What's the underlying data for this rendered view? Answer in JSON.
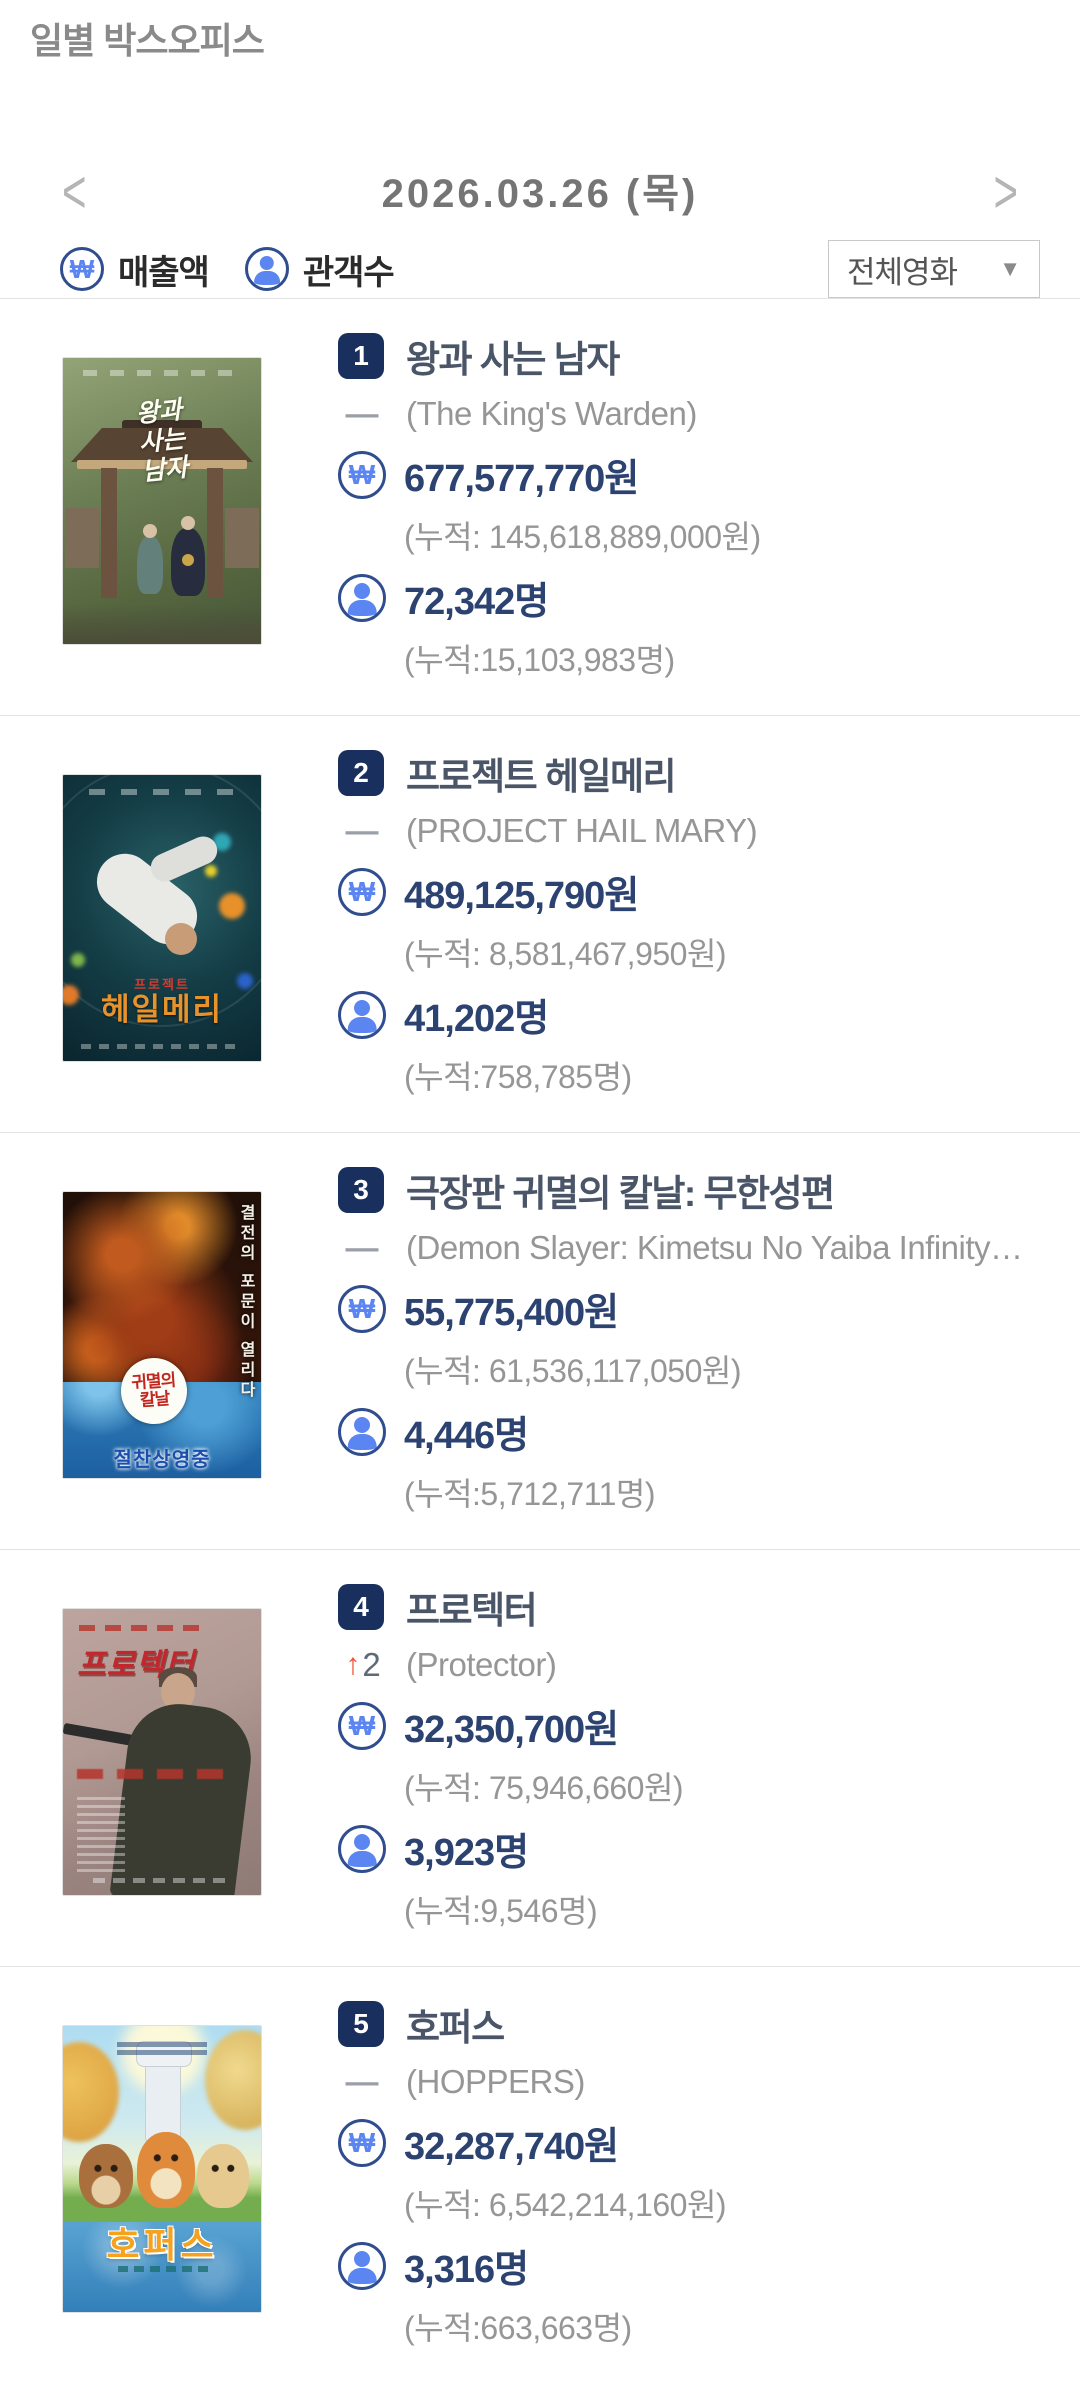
{
  "page": {
    "title": "일별 박스오피스"
  },
  "date_nav": {
    "date": "2026.03.26 (목)",
    "prev_icon": "<",
    "next_icon": ">"
  },
  "legend": {
    "sales_label": "매출액",
    "audience_label": "관객수"
  },
  "filter": {
    "selected": "전체영화",
    "arrow_icon": "▼"
  },
  "icons": {
    "won": "₩",
    "sales": "won-circle-icon",
    "audience": "person-circle-icon"
  },
  "colors": {
    "badge_navy": "#19305e",
    "value_navy": "#2c4270",
    "icon_blue": "#5b86f2",
    "icon_ring_navy": "#2f4d8f",
    "rank_up_red": "#f0543c",
    "muted_gray": "#969696",
    "divider_gray": "#e3e3e3"
  },
  "movies": [
    {
      "rank": "1",
      "change": {
        "direction": "same",
        "icon": "—",
        "value": ""
      },
      "title": "왕과 사는 남자",
      "title_en": "(The King's Warden)",
      "sales": "677,577,770원",
      "sales_cum": "(누적: 145,618,889,000원)",
      "audience": "72,342명",
      "audience_cum": "(누적:15,103,983명)",
      "poster": {
        "script_title": "왕과 사는 남자"
      }
    },
    {
      "rank": "2",
      "change": {
        "direction": "same",
        "icon": "—",
        "value": ""
      },
      "title": "프로젝트 헤일메리",
      "title_en": "(PROJECT HAIL MARY)",
      "sales": "489,125,790원",
      "sales_cum": "(누적: 8,581,467,950원)",
      "audience": "41,202명",
      "audience_cum": "(누적:758,785명)",
      "poster": {
        "title_small": "프로젝트",
        "title_big": "헤일메리"
      }
    },
    {
      "rank": "3",
      "change": {
        "direction": "same",
        "icon": "—",
        "value": ""
      },
      "title": "극장판 귀멸의 칼날: 무한성편",
      "title_en": "(Demon Slayer: Kimetsu No Yaiba Infinity…",
      "sales": "55,775,400원",
      "sales_cum": "(누적: 61,536,117,050원)",
      "audience": "4,446명",
      "audience_cum": "(누적:5,712,711명)",
      "poster": {
        "side_text": "결전의 포문이 열리다",
        "logo_line1": "귀멸의",
        "logo_line2": "칼날",
        "bottom_text": "절찬상영중"
      }
    },
    {
      "rank": "4",
      "change": {
        "direction": "up",
        "icon": "↑",
        "value": "2"
      },
      "title": "프로텍터",
      "title_en": "(Protector)",
      "sales": "32,350,700원",
      "sales_cum": "(누적: 75,946,660원)",
      "audience": "3,923명",
      "audience_cum": "(누적:9,546명)",
      "poster": {
        "title": "프로텍터"
      }
    },
    {
      "rank": "5",
      "change": {
        "direction": "same",
        "icon": "—",
        "value": ""
      },
      "title": "호퍼스",
      "title_en": "(HOPPERS)",
      "sales": "32,287,740원",
      "sales_cum": "(누적: 6,542,214,160원)",
      "audience": "3,316명",
      "audience_cum": "(누적:663,663명)",
      "poster": {
        "title": "호퍼스"
      }
    }
  ]
}
